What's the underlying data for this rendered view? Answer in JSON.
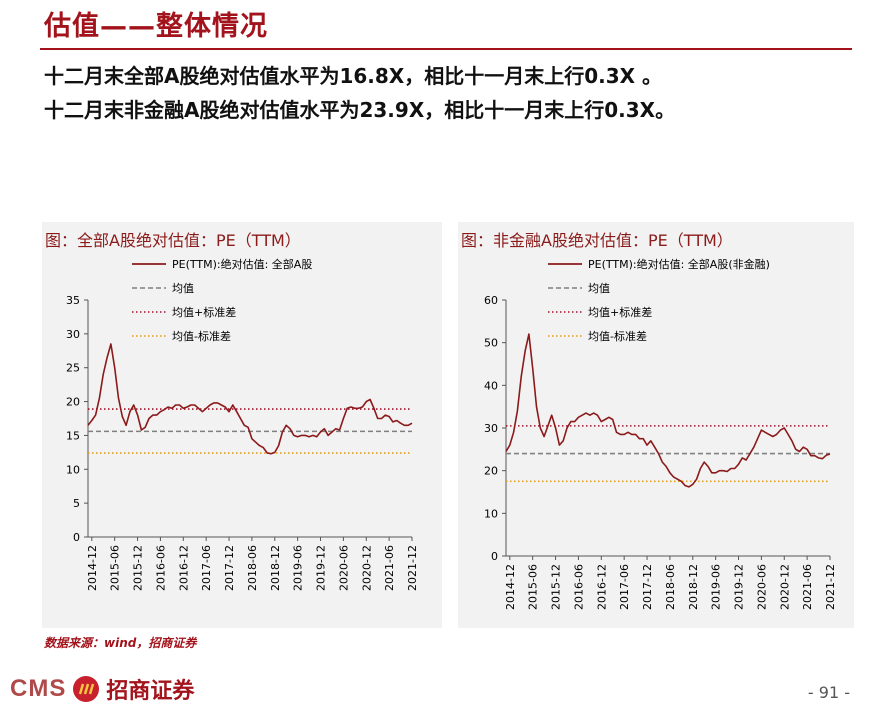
{
  "page": {
    "title": "估值——整体情况",
    "summary_lines": [
      "十二月末全部A股绝对估值水平为16.8X，相比十一月末上行0.3X 。",
      "十二月末非金融A股绝对估值水平为23.9X，相比十一月末上行0.3X。"
    ],
    "source": "数据来源：wind，招商证券",
    "logo_text": "CMS",
    "logo_cn": "招商证券",
    "page_number": "- 91 -"
  },
  "colors": {
    "accent": "#a3131c",
    "series": "#8b1a1a",
    "mean": "#808080",
    "upper": "#a0132c",
    "lower": "#e0a020"
  },
  "chart_data": [
    {
      "type": "line",
      "title": "图：全部A股绝对估值：PE（TTM）",
      "series": [
        {
          "name": "PE(TTM):绝对估值: 全部A股",
          "style": "solid",
          "x": [
            "2014-11",
            "2014-12",
            "2015-01",
            "2015-02",
            "2015-03",
            "2015-04",
            "2015-05",
            "2015-06",
            "2015-07",
            "2015-08",
            "2015-09",
            "2015-10",
            "2015-11",
            "2015-12",
            "2016-01",
            "2016-02",
            "2016-03",
            "2016-04",
            "2016-05",
            "2016-06",
            "2016-07",
            "2016-08",
            "2016-09",
            "2016-10",
            "2016-11",
            "2016-12",
            "2017-01",
            "2017-02",
            "2017-03",
            "2017-04",
            "2017-05",
            "2017-06",
            "2017-07",
            "2017-08",
            "2017-09",
            "2017-10",
            "2017-11",
            "2017-12",
            "2018-01",
            "2018-02",
            "2018-03",
            "2018-04",
            "2018-05",
            "2018-06",
            "2018-07",
            "2018-08",
            "2018-09",
            "2018-10",
            "2018-11",
            "2018-12",
            "2019-01",
            "2019-02",
            "2019-03",
            "2019-04",
            "2019-05",
            "2019-06",
            "2019-07",
            "2019-08",
            "2019-09",
            "2019-10",
            "2019-11",
            "2019-12",
            "2020-01",
            "2020-02",
            "2020-03",
            "2020-04",
            "2020-05",
            "2020-06",
            "2020-07",
            "2020-08",
            "2020-09",
            "2020-10",
            "2020-11",
            "2020-12",
            "2021-01",
            "2021-02",
            "2021-03",
            "2021-04",
            "2021-05",
            "2021-06",
            "2021-07",
            "2021-08",
            "2021-09",
            "2021-10",
            "2021-11",
            "2021-12"
          ],
          "values": [
            16.5,
            17.2,
            18.0,
            20.5,
            24.0,
            26.5,
            28.5,
            25.0,
            20.5,
            17.8,
            16.5,
            18.5,
            19.5,
            18.0,
            15.8,
            16.2,
            17.5,
            18.0,
            18.0,
            18.5,
            18.8,
            19.2,
            19.0,
            19.5,
            19.5,
            19.0,
            19.2,
            19.5,
            19.5,
            19.0,
            18.5,
            19.0,
            19.5,
            19.8,
            19.8,
            19.5,
            19.2,
            18.5,
            19.5,
            18.5,
            17.5,
            16.5,
            16.2,
            14.5,
            14.0,
            13.5,
            13.2,
            12.4,
            12.3,
            12.5,
            13.5,
            15.5,
            16.5,
            16.0,
            15.0,
            14.8,
            15.0,
            15.0,
            14.8,
            15.0,
            14.8,
            15.5,
            16.0,
            15.0,
            15.5,
            16.0,
            15.8,
            17.5,
            19.0,
            19.2,
            19.0,
            19.0,
            19.2,
            20.0,
            20.3,
            19.0,
            17.5,
            17.5,
            18.0,
            17.8,
            17.0,
            17.2,
            16.8,
            16.5,
            16.5,
            16.8
          ]
        },
        {
          "name": "均值",
          "style": "dashed",
          "constant": 15.6
        },
        {
          "name": "均值+标准差",
          "style": "dotted",
          "constant": 18.9
        },
        {
          "name": "均值-标准差",
          "style": "dotted",
          "constant": 12.4
        }
      ],
      "x_ticks": [
        "2014-12",
        "2015-06",
        "2015-12",
        "2016-06",
        "2016-12",
        "2017-06",
        "2017-12",
        "2018-06",
        "2018-12",
        "2019-06",
        "2019-12",
        "2020-06",
        "2020-12",
        "2021-06",
        "2021-12"
      ],
      "y_ticks": [
        "0",
        "5",
        "10",
        "15",
        "20",
        "25",
        "30",
        "35"
      ],
      "ylim": [
        0,
        35
      ],
      "legend_position": "top"
    },
    {
      "type": "line",
      "title": "图：非金融A股绝对估值：PE（TTM）",
      "series": [
        {
          "name": "PE(TTM):绝对估值: 全部A股(非金融)",
          "style": "solid",
          "x": [
            "2014-11",
            "2014-12",
            "2015-01",
            "2015-02",
            "2015-03",
            "2015-04",
            "2015-05",
            "2015-06",
            "2015-07",
            "2015-08",
            "2015-09",
            "2015-10",
            "2015-11",
            "2015-12",
            "2016-01",
            "2016-02",
            "2016-03",
            "2016-04",
            "2016-05",
            "2016-06",
            "2016-07",
            "2016-08",
            "2016-09",
            "2016-10",
            "2016-11",
            "2016-12",
            "2017-01",
            "2017-02",
            "2017-03",
            "2017-04",
            "2017-05",
            "2017-06",
            "2017-07",
            "2017-08",
            "2017-09",
            "2017-10",
            "2017-11",
            "2017-12",
            "2018-01",
            "2018-02",
            "2018-03",
            "2018-04",
            "2018-05",
            "2018-06",
            "2018-07",
            "2018-08",
            "2018-09",
            "2018-10",
            "2018-11",
            "2018-12",
            "2019-01",
            "2019-02",
            "2019-03",
            "2019-04",
            "2019-05",
            "2019-06",
            "2019-07",
            "2019-08",
            "2019-09",
            "2019-10",
            "2019-11",
            "2019-12",
            "2020-01",
            "2020-02",
            "2020-03",
            "2020-04",
            "2020-05",
            "2020-06",
            "2020-07",
            "2020-08",
            "2020-09",
            "2020-10",
            "2020-11",
            "2020-12",
            "2021-01",
            "2021-02",
            "2021-03",
            "2021-04",
            "2021-05",
            "2021-06",
            "2021-07",
            "2021-08",
            "2021-09",
            "2021-10",
            "2021-11",
            "2021-12"
          ],
          "values": [
            24.5,
            26.0,
            29.0,
            34.0,
            42.0,
            48.0,
            52.0,
            44.0,
            35.0,
            30.0,
            28.0,
            30.5,
            33.0,
            30.0,
            26.0,
            27.0,
            30.0,
            31.5,
            31.5,
            32.5,
            33.0,
            33.5,
            33.0,
            33.5,
            33.0,
            31.5,
            32.0,
            32.5,
            32.0,
            29.0,
            28.5,
            28.5,
            29.0,
            28.5,
            28.5,
            27.5,
            27.5,
            26.0,
            27.0,
            25.5,
            24.0,
            22.0,
            21.0,
            19.5,
            18.5,
            18.0,
            17.5,
            16.5,
            16.2,
            16.8,
            18.0,
            20.5,
            22.0,
            21.0,
            19.5,
            19.5,
            20.0,
            20.0,
            19.8,
            20.5,
            20.5,
            21.5,
            23.0,
            22.5,
            24.0,
            25.5,
            27.5,
            29.5,
            29.0,
            28.5,
            28.0,
            28.5,
            29.5,
            30.0,
            28.5,
            27.0,
            25.0,
            24.5,
            25.5,
            25.0,
            23.5,
            23.5,
            23.0,
            22.8,
            23.6,
            23.9
          ]
        },
        {
          "name": "均值",
          "style": "dashed",
          "constant": 24.0
        },
        {
          "name": "均值+标准差",
          "style": "dotted",
          "constant": 30.5
        },
        {
          "name": "均值-标准差",
          "style": "dotted",
          "constant": 17.5
        }
      ],
      "x_ticks": [
        "2014-12",
        "2015-06",
        "2015-12",
        "2016-06",
        "2016-12",
        "2017-06",
        "2017-12",
        "2018-06",
        "2018-12",
        "2019-06",
        "2019-12",
        "2020-06",
        "2020-12",
        "2021-06",
        "2021-12"
      ],
      "y_ticks": [
        "0",
        "10",
        "20",
        "30",
        "40",
        "50",
        "60"
      ],
      "ylim": [
        0,
        60
      ],
      "legend_position": "top"
    }
  ]
}
